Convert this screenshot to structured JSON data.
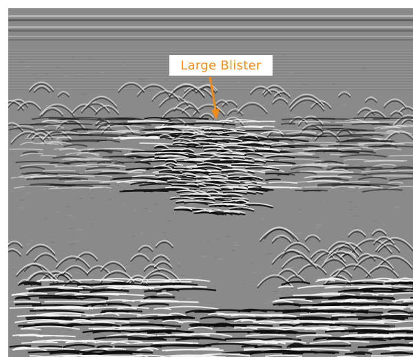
{
  "annotation": {
    "label": "Large Blister",
    "color": "#f28c18"
  },
  "image": {
    "subject": "ground-penetrating-radar-scan",
    "background": "#8b8b8b"
  }
}
